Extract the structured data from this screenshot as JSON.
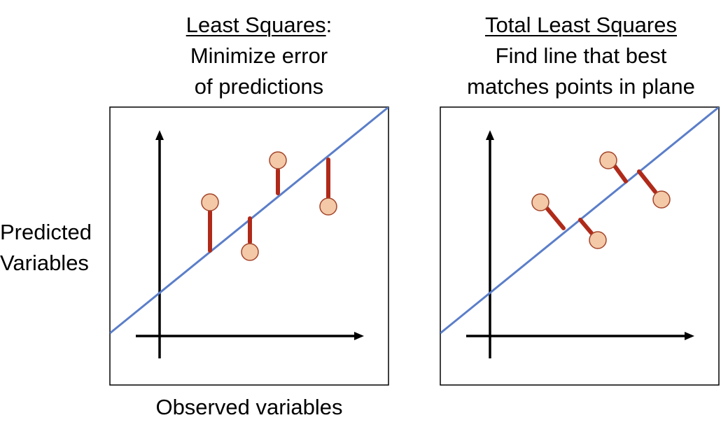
{
  "left_panel": {
    "title_underlined": "Least Squares",
    "title_suffix": ":",
    "line2": "Minimize error",
    "line3": "of predictions"
  },
  "right_panel": {
    "title_underlined": "Total Least Squares",
    "line2": "Find line that best",
    "line3": "matches points in plane"
  },
  "y_axis_label": {
    "line1": "Predicted",
    "line2": "Variables"
  },
  "x_axis_label": "Observed variables",
  "colors": {
    "fit_line": "#5b7ec9",
    "residual": "#b02a1a",
    "point_fill": "#f3c9a8",
    "point_stroke": "#a4452a",
    "axis": "#000000",
    "frame": "#000000"
  }
}
